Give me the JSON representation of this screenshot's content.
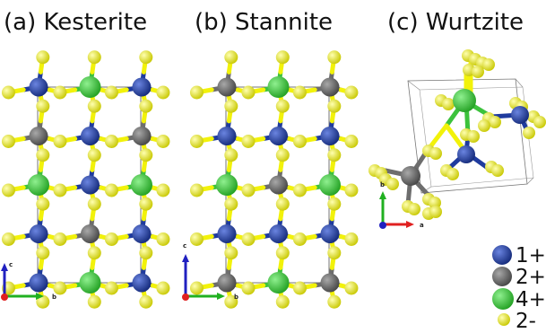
{
  "titles": {
    "kesterite": "(a) Kesterite",
    "stannite": "(b) Stannite",
    "wurtzite": "(c) Wurtzite"
  },
  "axes": {
    "kesterite": {
      "vertical": "c",
      "horizontal": "b"
    },
    "stannite": {
      "vertical": "c",
      "horizontal": "b"
    },
    "wurtzite": {
      "vertical": "b",
      "horizontal": "a"
    }
  },
  "legend": [
    {
      "label": "1+",
      "color": "#1f3b9e",
      "name": "legend-1plus"
    },
    {
      "label": "2+",
      "color": "#6d6d6d",
      "name": "legend-2plus"
    },
    {
      "label": "4+",
      "color": "#3cc23c",
      "name": "legend-4plus"
    },
    {
      "label": "2-",
      "color": "#f2f20a",
      "name": "legend-2minus"
    }
  ],
  "colors": {
    "cation1": "#1f3b9e",
    "cation2": "#6d6d6d",
    "cation4": "#3cc23c",
    "anion": "#f2f20a",
    "axis_red": "#e02020",
    "axis_green": "#20b020",
    "axis_blue": "#2020c0"
  },
  "structures": {
    "kesterite_cations": [
      [
        "C1",
        "C4",
        "C1"
      ],
      [
        "C2",
        "C1",
        "C2"
      ],
      [
        "C4",
        "C1",
        "C4"
      ],
      [
        "C1",
        "C2",
        "C1"
      ],
      [
        "C1",
        "C4",
        "C1"
      ]
    ],
    "stannite_cations": [
      [
        "C2",
        "C4",
        "C2"
      ],
      [
        "C1",
        "C1",
        "C1"
      ],
      [
        "C4",
        "C2",
        "C4"
      ],
      [
        "C1",
        "C1",
        "C1"
      ],
      [
        "C2",
        "C4",
        "C2"
      ]
    ]
  }
}
